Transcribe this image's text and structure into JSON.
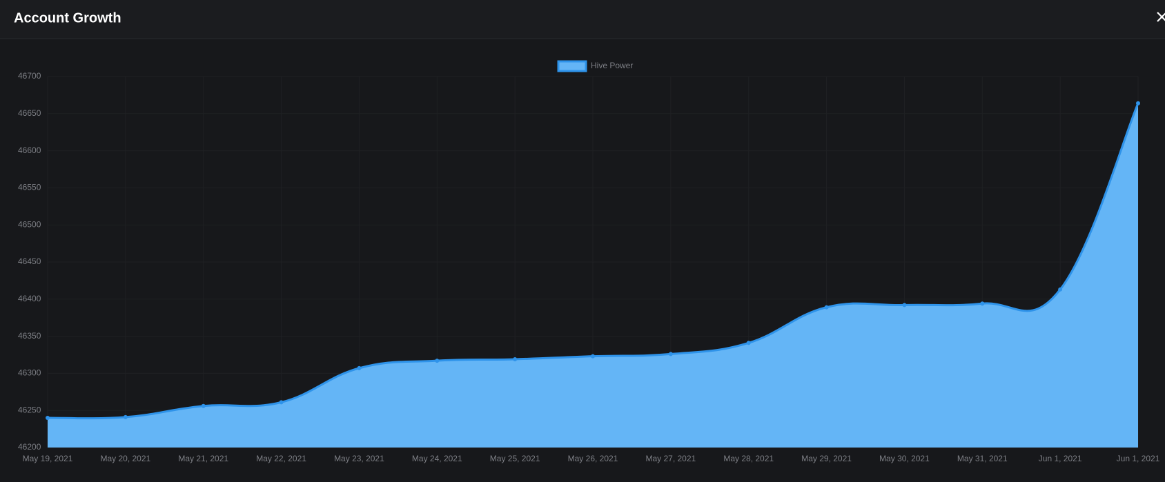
{
  "chart_data": {
    "type": "area",
    "title": "Account Growth",
    "categories": [
      "May 19, 2021",
      "May 20, 2021",
      "May 21, 2021",
      "May 22, 2021",
      "May 23, 2021",
      "May 24, 2021",
      "May 25, 2021",
      "May 26, 2021",
      "May 27, 2021",
      "May 28, 2021",
      "May 29, 2021",
      "May 30, 2021",
      "May 31, 2021",
      "Jun 1, 2021",
      "Jun 1, 2021"
    ],
    "series": [
      {
        "name": "Hive Power",
        "color": "#64b5f6",
        "values": [
          46240,
          46241,
          46256,
          46261,
          46307,
          46317,
          46319,
          46323,
          46326,
          46341,
          46389,
          46392,
          46394,
          46413,
          46664
        ]
      }
    ],
    "ylim": [
      46200,
      46700
    ],
    "yticks": [
      46200,
      46250,
      46300,
      46350,
      46400,
      46450,
      46500,
      46550,
      46600,
      46650,
      46700
    ],
    "grid": true,
    "legend": "top"
  }
}
